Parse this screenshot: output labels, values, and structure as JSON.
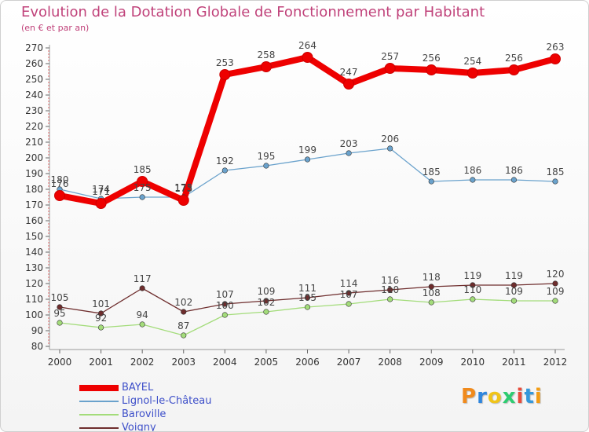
{
  "chart_data": {
    "type": "line",
    "title": "Evolution de la Dotation Globale de Fonctionnement par Habitant",
    "subtitle": "(en € et par an)",
    "xlabel": "",
    "ylabel": "",
    "categories": [
      "2000",
      "2001",
      "2002",
      "2003",
      "2004",
      "2005",
      "2006",
      "2007",
      "2008",
      "2009",
      "2010",
      "2011",
      "2012"
    ],
    "ylim": [
      80,
      270
    ],
    "yticks": [
      80,
      90,
      100,
      110,
      120,
      130,
      140,
      150,
      160,
      170,
      180,
      190,
      200,
      210,
      220,
      230,
      240,
      250,
      260,
      270
    ],
    "grid": false,
    "legend_position": "bottom-left",
    "series": [
      {
        "name": "BAYEL",
        "color": "#ee0000",
        "style": "thick",
        "values": [
          176,
          171,
          185,
          173,
          253,
          258,
          264,
          247,
          257,
          256,
          254,
          256,
          263
        ]
      },
      {
        "name": "Lignol-le-Château",
        "color": "#6aa2cc",
        "style": "thin",
        "values": [
          180,
          174,
          175,
          175,
          192,
          195,
          199,
          203,
          206,
          185,
          186,
          186,
          185
        ]
      },
      {
        "name": "Baroville",
        "color": "#a3dc7a",
        "style": "thin",
        "values": [
          95,
          92,
          94,
          87,
          100,
          102,
          105,
          107,
          110,
          108,
          110,
          109,
          109
        ]
      },
      {
        "name": "Voigny",
        "color": "#6e2d2d",
        "style": "thin",
        "values": [
          105,
          101,
          117,
          102,
          107,
          109,
          111,
          114,
          116,
          118,
          119,
          119,
          120
        ]
      }
    ]
  },
  "logo": {
    "letters": [
      "P",
      "r",
      "o",
      "x",
      "i",
      "t",
      "i"
    ],
    "colors": [
      "#f08a1c",
      "#2e86de",
      "#f0c419",
      "#2ecc71",
      "#e74c3c",
      "#3498db",
      "#f39c12"
    ]
  }
}
